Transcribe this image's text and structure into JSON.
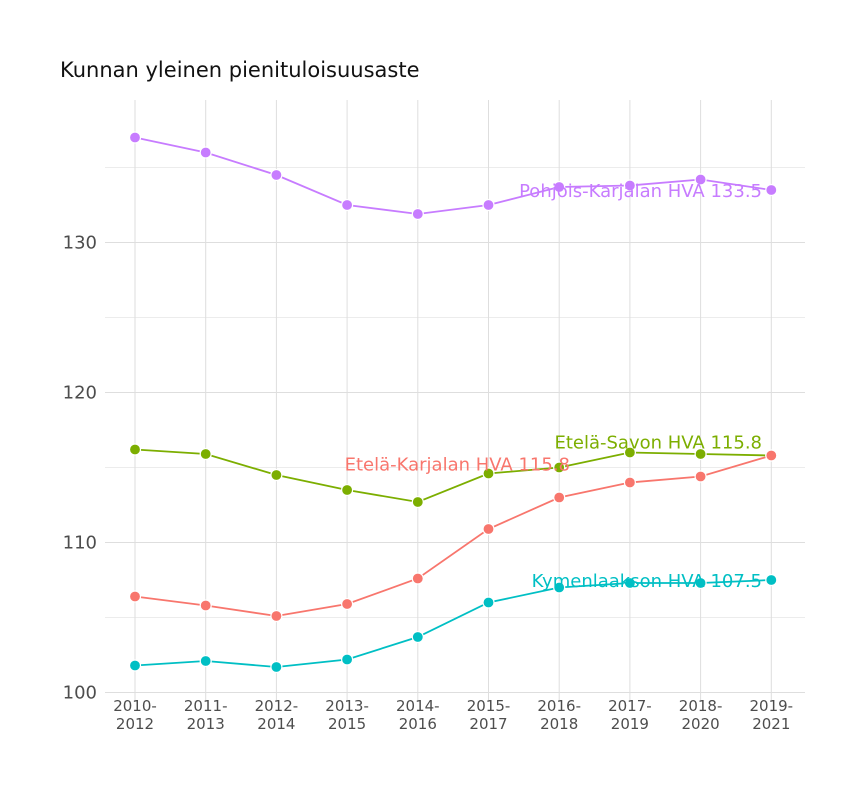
{
  "chart_data": {
    "type": "line",
    "title": "Kunnan yleinen pienituloisuusaste",
    "xlabel": "",
    "ylabel": "",
    "categories": [
      "2010-\n2012",
      "2011-\n2013",
      "2012-\n2014",
      "2013-\n2015",
      "2014-\n2016",
      "2015-\n2017",
      "2016-\n2018",
      "2017-\n2019",
      "2018-\n2020",
      "2019-\n2021"
    ],
    "ylim": [
      99.5,
      139.5
    ],
    "yticks": [
      100,
      110,
      120,
      130
    ],
    "grid": true,
    "legend": "none",
    "series": [
      {
        "name": "Pohjois-Karjalan HVA",
        "label": "Pohjois-Karjalan HVA 133.5",
        "color": "#C77CFF",
        "values": [
          137.0,
          136.0,
          134.5,
          132.5,
          131.9,
          132.5,
          133.7,
          133.8,
          134.2,
          133.5
        ]
      },
      {
        "name": "Etelä-Savon HVA",
        "label": "Etelä-Savon HVA 115.8",
        "color": "#7CAE00",
        "values": [
          116.2,
          115.9,
          114.5,
          113.5,
          112.7,
          114.6,
          115.0,
          116.0,
          115.9,
          115.8
        ]
      },
      {
        "name": "Etelä-Karjalan HVA",
        "label": "Etelä-Karjalan HVA 115.8",
        "color": "#F8766D",
        "values": [
          106.4,
          105.8,
          105.1,
          105.9,
          107.6,
          110.9,
          113.0,
          114.0,
          114.4,
          115.8
        ]
      },
      {
        "name": "Kymenlaakson HVA",
        "label": "Kymenlaakson HVA 107.5",
        "color": "#00BFC4",
        "values": [
          101.8,
          102.1,
          101.7,
          102.2,
          103.7,
          106.0,
          107.0,
          107.3,
          107.3,
          107.5
        ]
      }
    ]
  }
}
